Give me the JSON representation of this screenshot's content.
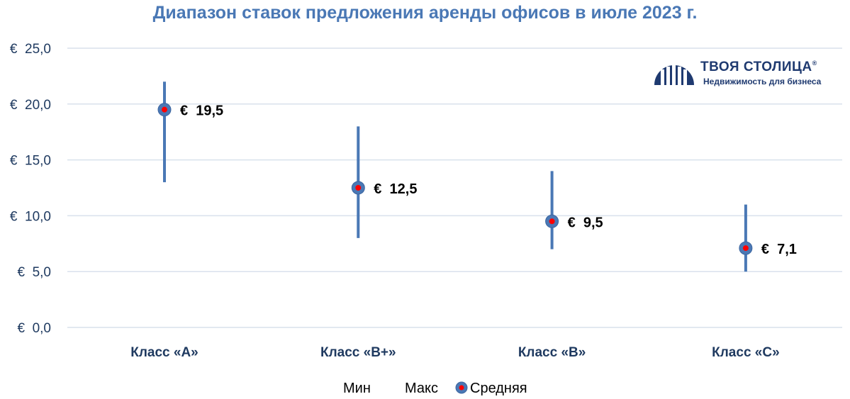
{
  "chart_data": {
    "type": "range",
    "title": "Диапазон ставок предложения аренды офисов в июле 2023 г.",
    "categories": [
      "Класс «A»",
      "Класс «B+»",
      "Класс «B»",
      "Класс «C»"
    ],
    "series": [
      {
        "name": "Мин",
        "values": [
          13.0,
          8.0,
          7.0,
          5.0
        ]
      },
      {
        "name": "Макс",
        "values": [
          22.0,
          18.0,
          14.0,
          11.0
        ]
      },
      {
        "name": "Средняя",
        "values": [
          19.5,
          12.5,
          9.5,
          7.1
        ]
      }
    ],
    "data_labels": [
      "€  19,5",
      "€  12,5",
      "€  9,5",
      "€  7,1"
    ],
    "yticks": [
      "€  0,0",
      "€  5,0",
      "€  10,0",
      "€  15,0",
      "€  20,0",
      "€  25,0"
    ],
    "ylim": [
      0,
      25
    ],
    "grid": true,
    "legend_position": "bottom",
    "colors": {
      "range": "#4a78b5",
      "marker": "#4a78b5",
      "marker_dot": "#ff0000",
      "grid": "#d9e1ec",
      "title": "#4a78b5"
    }
  },
  "logo": {
    "name": "ТВОЯ СТОЛИЦА",
    "registered": "®",
    "tagline": "Недвижимость для бизнеса"
  }
}
